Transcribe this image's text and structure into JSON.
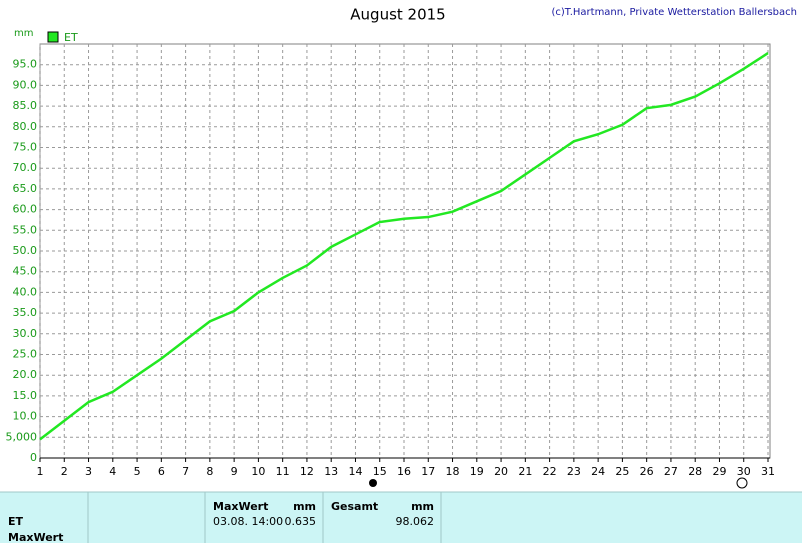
{
  "chart_data": {
    "type": "line",
    "title": "August 2015",
    "credit": "(c)T.Hartmann, Private Wetterstation Ballersbach",
    "y_unit": "mm",
    "x": [
      1,
      2,
      3,
      4,
      5,
      6,
      7,
      8,
      9,
      10,
      11,
      12,
      13,
      14,
      15,
      16,
      17,
      18,
      19,
      20,
      21,
      22,
      23,
      24,
      25,
      26,
      27,
      28,
      29,
      30,
      31
    ],
    "series": [
      {
        "name": "ET",
        "color": "#22e822",
        "values": [
          4.5,
          9,
          13.5,
          16,
          20,
          24,
          28.5,
          33,
          35.5,
          40,
          43.5,
          46.5,
          51,
          54,
          57,
          57.8,
          58.2,
          59.5,
          62,
          64.5,
          68.5,
          72.5,
          76.5,
          78.2,
          80.5,
          84.5,
          85.3,
          87.3,
          90.5,
          94,
          97.8
        ]
      }
    ],
    "xlim": [
      1,
      31
    ],
    "ylim": [
      0,
      100
    ],
    "xticks": [
      1,
      2,
      3,
      4,
      5,
      6,
      7,
      8,
      9,
      10,
      11,
      12,
      13,
      14,
      15,
      16,
      17,
      18,
      19,
      20,
      21,
      22,
      23,
      24,
      25,
      26,
      27,
      28,
      29,
      30,
      31
    ],
    "yticks": [
      0,
      {
        "value": 5,
        "label": "5,000"
      },
      {
        "value": 10,
        "label": "10.0"
      },
      {
        "value": 15,
        "label": "15.0"
      },
      {
        "value": 20,
        "label": "20.0"
      },
      {
        "value": 25,
        "label": "25.0"
      },
      {
        "value": 30,
        "label": "30.0"
      },
      {
        "value": 35,
        "label": "35.0"
      },
      {
        "value": 40,
        "label": "40.0"
      },
      {
        "value": 45,
        "label": "45.0"
      },
      {
        "value": 50,
        "label": "50.0"
      },
      {
        "value": 55,
        "label": "55.0"
      },
      {
        "value": 60,
        "label": "60.0"
      },
      {
        "value": 65,
        "label": "65.0"
      },
      {
        "value": 70,
        "label": "70.0"
      },
      {
        "value": 75,
        "label": "75.0"
      },
      {
        "value": 80,
        "label": "80.0"
      },
      {
        "value": 85,
        "label": "85.0"
      },
      {
        "value": 90,
        "label": "90.0"
      },
      {
        "value": 95,
        "label": "95.0"
      }
    ],
    "grid": true
  },
  "summary": {
    "row_labels": [
      "ET",
      "MaxWert"
    ],
    "maxwert": {
      "header": "MaxWert",
      "unit": "mm",
      "time": "03.08. 14:00",
      "value": 0.635
    },
    "gesamt": {
      "header": "Gesamt",
      "unit": "mm",
      "value": 98.062
    }
  }
}
